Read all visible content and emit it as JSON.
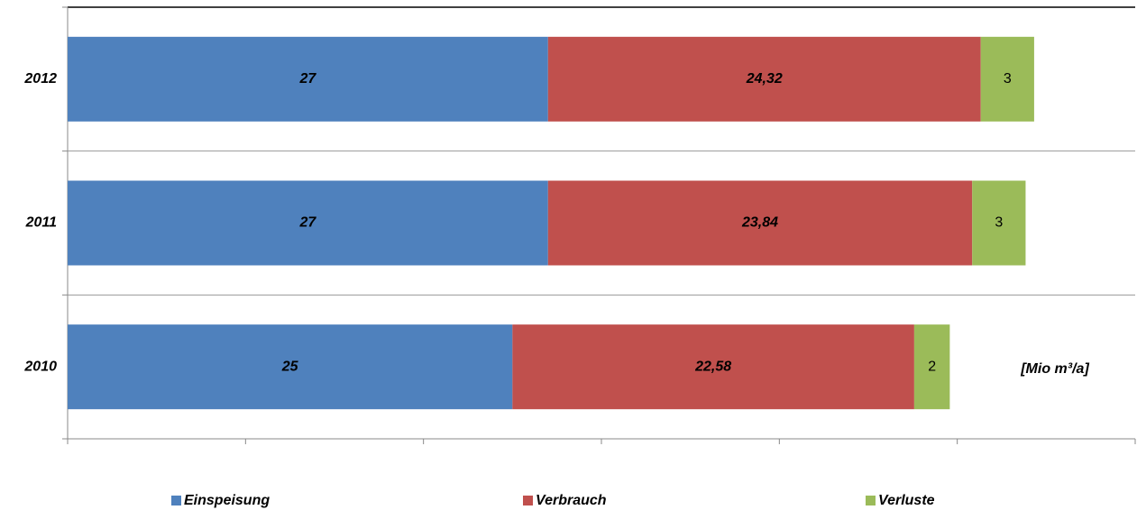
{
  "chart_data": {
    "type": "stacked-barh",
    "categories": [
      "2012",
      "2011",
      "2010"
    ],
    "series": [
      {
        "name": "Einspeisung",
        "color": "#4f81bd",
        "values": [
          27,
          27,
          25
        ]
      },
      {
        "name": "Verbrauch",
        "color": "#c0504d",
        "values": [
          24.32,
          23.84,
          22.58
        ],
        "value_labels": [
          "24,32",
          "23,84",
          "22,58"
        ]
      },
      {
        "name": "Verluste",
        "color": "#9bbb59",
        "values": [
          3,
          3,
          2
        ]
      }
    ],
    "xlim": [
      0,
      60
    ],
    "xticks": [
      0,
      10,
      20,
      30,
      40,
      50,
      60
    ],
    "annotation": "[Mio m³/a]",
    "legend": "bottom"
  }
}
